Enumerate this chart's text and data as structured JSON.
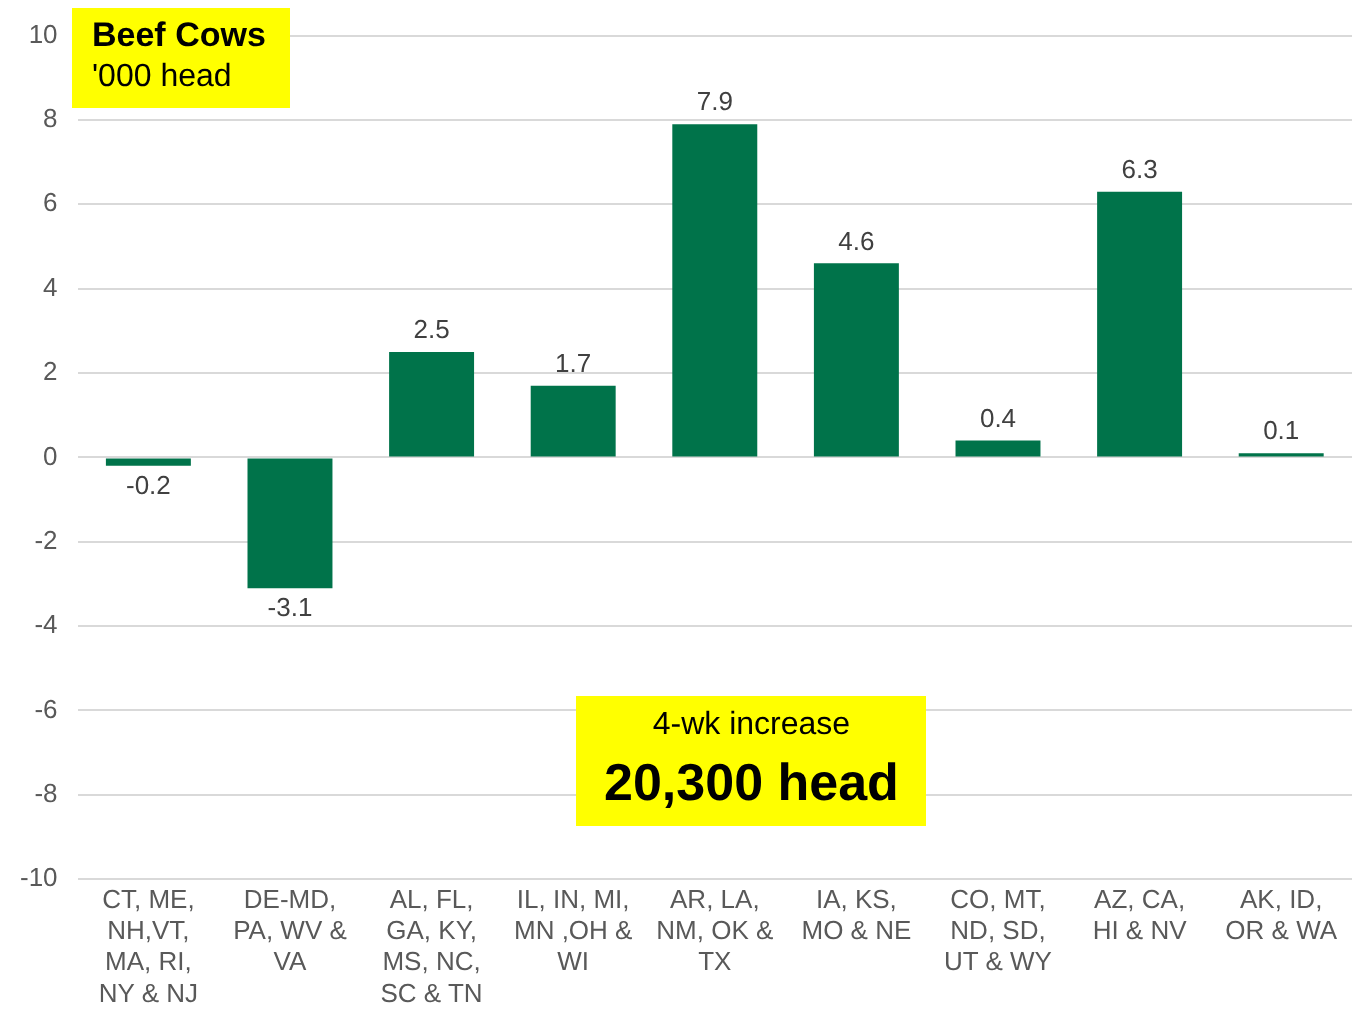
{
  "chart_data": {
    "type": "bar",
    "title": "Beef Cows",
    "subtitle": "'000 head",
    "categories": [
      "CT, ME, NH,VT, MA, RI, NY & NJ",
      "DE-MD, PA, WV & VA",
      "AL, FL, GA, KY, MS, NC, SC & TN",
      "IL, IN, MI, MN ,OH & WI",
      "AR, LA, NM, OK & TX",
      "IA, KS, MO & NE",
      "CO, MT, ND, SD, UT & WY",
      "AZ, CA, HI & NV",
      "AK, ID, OR & WA"
    ],
    "values": [
      -0.2,
      -3.1,
      2.5,
      1.7,
      7.9,
      4.6,
      0.4,
      6.3,
      0.1
    ],
    "color": "#00734a",
    "ylim": [
      -10,
      10
    ],
    "yticks": [
      -10,
      -8,
      -6,
      -4,
      -2,
      0,
      2,
      4,
      6,
      8,
      10
    ],
    "grid": "y",
    "legend": false,
    "data_labels": true,
    "annotations": [
      "4-wk increase",
      "20,300 head"
    ]
  }
}
